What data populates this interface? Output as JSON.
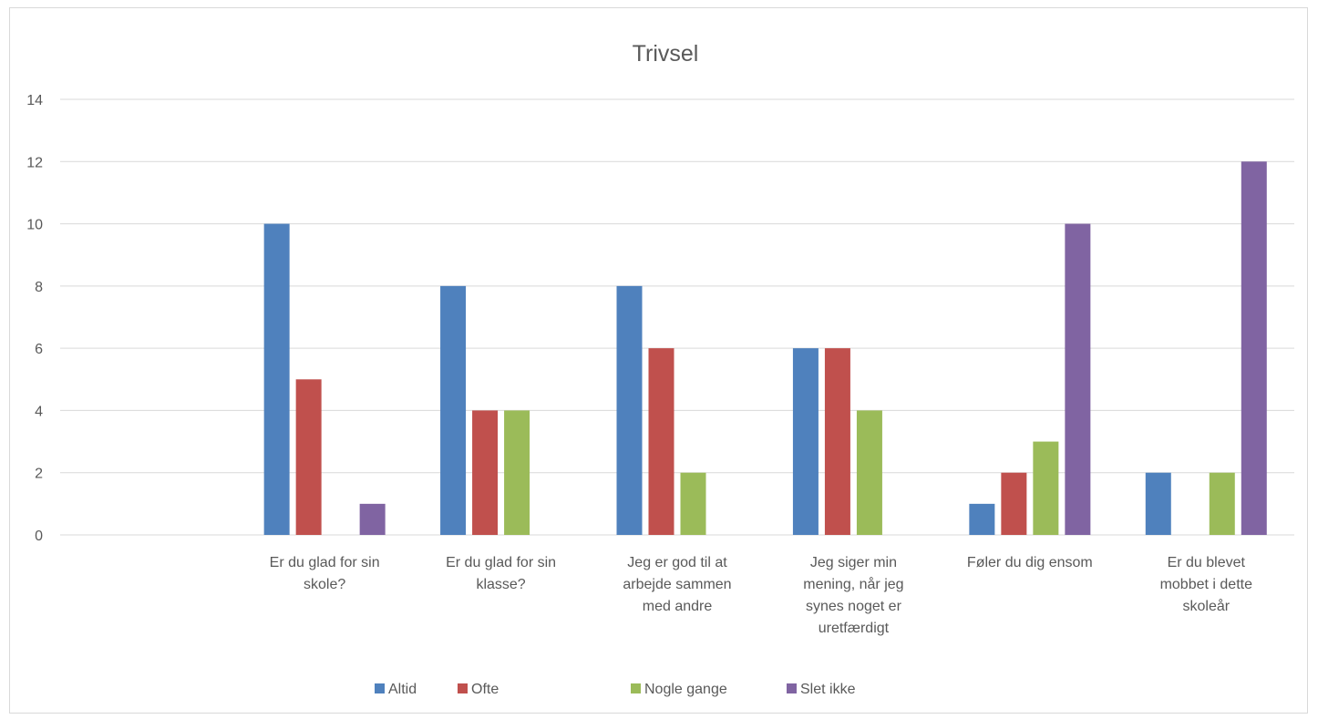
{
  "chart_data": {
    "type": "bar",
    "title": "Trivsel",
    "xlabel": "",
    "ylabel": "",
    "ylim": [
      0,
      14
    ],
    "yticks": [
      0,
      2,
      4,
      6,
      8,
      10,
      12,
      14
    ],
    "grid": true,
    "legend_position": "bottom",
    "categories": [
      [
        "Er du glad for sin",
        "skole?"
      ],
      [
        "Er du glad for sin",
        "klasse?"
      ],
      [
        "Jeg er god til at",
        "arbejde sammen",
        "med andre"
      ],
      [
        "Jeg siger min",
        "mening, når jeg",
        "synes noget er",
        "uretfærdigt"
      ],
      [
        "Føler du dig ensom"
      ],
      [
        "Er du blevet",
        "mobbet i dette",
        "skoleår"
      ]
    ],
    "series": [
      {
        "name": "Altid",
        "color": "#4f81bd",
        "values": [
          10,
          8,
          8,
          6,
          1,
          2
        ]
      },
      {
        "name": "Ofte",
        "color": "#c0504d",
        "values": [
          5,
          4,
          6,
          6,
          2,
          0
        ]
      },
      {
        "name": "Nogle gange",
        "color": "#9bbb59",
        "values": [
          0,
          4,
          2,
          4,
          3,
          2
        ]
      },
      {
        "name": "Slet ikke",
        "color": "#8064a2",
        "values": [
          1,
          0,
          0,
          0,
          10,
          12
        ]
      }
    ]
  }
}
